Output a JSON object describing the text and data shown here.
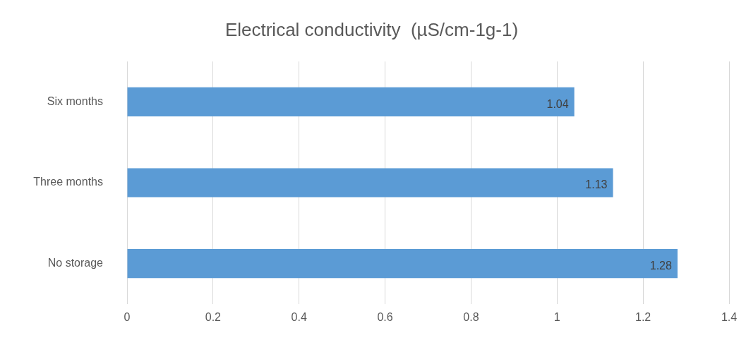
{
  "chart_data": {
    "type": "bar",
    "orientation": "horizontal",
    "title": "Electrical conductivity  (µS/cm-1g-1)",
    "categories": [
      "Six months",
      "Three months",
      "No storage"
    ],
    "values": [
      1.04,
      1.13,
      1.28
    ],
    "color": "#5b9bd5",
    "xlim": [
      0,
      1.4
    ],
    "xticks": [
      0,
      0.2,
      0.4,
      0.6,
      0.8,
      1,
      1.2,
      1.4
    ],
    "grid": "x",
    "data_labels": true,
    "legend": false
  }
}
